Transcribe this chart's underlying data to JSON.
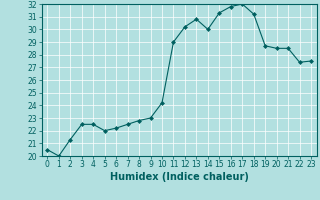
{
  "xlabel": "Humidex (Indice chaleur)",
  "ylabel": "",
  "x": [
    0,
    1,
    2,
    3,
    4,
    5,
    6,
    7,
    8,
    9,
    10,
    11,
    12,
    13,
    14,
    15,
    16,
    17,
    18,
    19,
    20,
    21,
    22,
    23
  ],
  "y": [
    20.5,
    20.0,
    21.3,
    22.5,
    22.5,
    22.0,
    22.2,
    22.5,
    22.8,
    23.0,
    24.2,
    29.0,
    30.2,
    30.8,
    30.0,
    31.3,
    31.8,
    32.0,
    31.2,
    28.7,
    28.5,
    28.5,
    27.4,
    27.5
  ],
  "line_color": "#006060",
  "marker_color": "#006060",
  "bg_color": "#b2e0e0",
  "grid_color": "#ffffff",
  "ylim": [
    20,
    32
  ],
  "yticks": [
    20,
    21,
    22,
    23,
    24,
    25,
    26,
    27,
    28,
    29,
    30,
    31,
    32
  ],
  "xticks": [
    0,
    1,
    2,
    3,
    4,
    5,
    6,
    7,
    8,
    9,
    10,
    11,
    12,
    13,
    14,
    15,
    16,
    17,
    18,
    19,
    20,
    21,
    22,
    23
  ],
  "tick_fontsize": 5.5,
  "xlabel_fontsize": 7,
  "xlabel_fontweight": "bold"
}
